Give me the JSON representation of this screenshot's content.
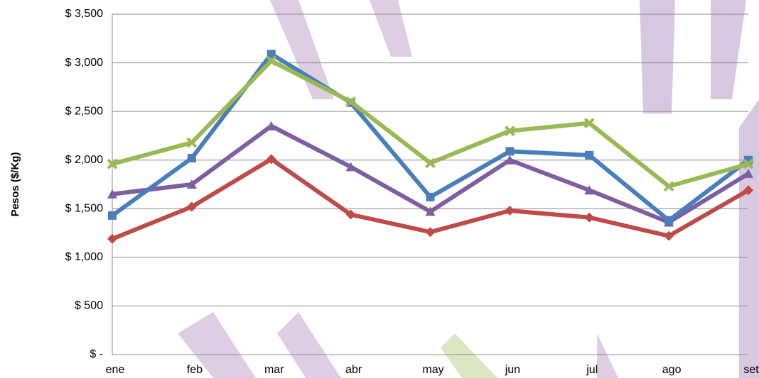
{
  "chart_data": {
    "type": "line",
    "y_label": "Pesos ($/Kg)",
    "categories": [
      "ene",
      "feb",
      "mar",
      "abr",
      "may",
      "jun",
      "jul",
      "ago",
      "set"
    ],
    "series": [
      {
        "color": "#be4b48",
        "marker": "diamond",
        "values": [
          1190,
          1520,
          2010,
          1440,
          1260,
          1480,
          1410,
          1220,
          1690
        ]
      },
      {
        "color": "#7d5fa0",
        "marker": "triangle",
        "values": [
          1650,
          1750,
          2350,
          1930,
          1470,
          2000,
          1690,
          1360,
          1860
        ]
      },
      {
        "color": "#4a7ebb",
        "marker": "square",
        "values": [
          1430,
          2020,
          3090,
          2590,
          1620,
          2090,
          2050,
          1380,
          2000
        ]
      },
      {
        "color": "#98b954",
        "marker": "x",
        "values": [
          1960,
          2180,
          3020,
          2600,
          1970,
          2300,
          2380,
          1730,
          1960
        ]
      }
    ],
    "ylim": [
      0,
      3500
    ],
    "yticks": [
      {
        "value": 0,
        "label": "$ -"
      },
      {
        "value": 500,
        "label": "$ 500"
      },
      {
        "value": 1000,
        "label": "$ 1,000"
      },
      {
        "value": 1500,
        "label": "$ 1,500"
      },
      {
        "value": 2000,
        "label": "$ 2,000"
      },
      {
        "value": 2500,
        "label": "$ 2,500"
      },
      {
        "value": 3000,
        "label": "$ 3,000"
      },
      {
        "value": 3500,
        "label": "$ 3,500"
      }
    ],
    "grid": true
  }
}
